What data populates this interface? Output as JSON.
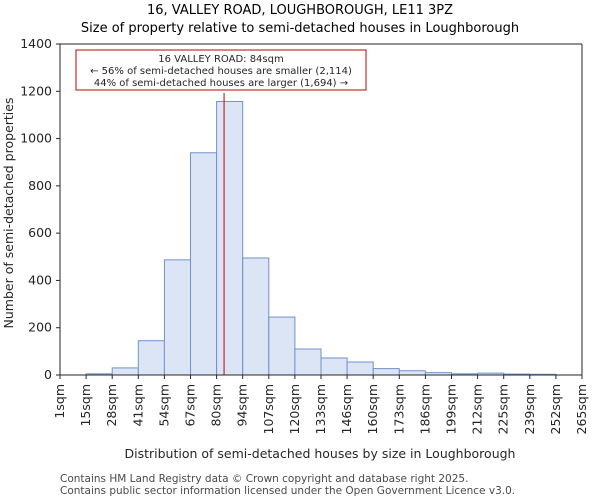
{
  "chart_data": {
    "type": "bar",
    "title_line1": "16, VALLEY ROAD, LOUGHBOROUGH, LE11 3PZ",
    "title_line2": "Size of property relative to semi-detached houses in Loughborough",
    "xlabel": "Distribution of semi-detached houses by size in Loughborough",
    "ylabel": "Number of semi-detached properties",
    "bin_edges": [
      1,
      15,
      28,
      41,
      54,
      67,
      80,
      94,
      107,
      120,
      133,
      146,
      160,
      173,
      186,
      199,
      212,
      225,
      239,
      252,
      265
    ],
    "tick_labels": [
      "1sqm",
      "15sqm",
      "28sqm",
      "41sqm",
      "54sqm",
      "67sqm",
      "80sqm",
      "94sqm",
      "107sqm",
      "120sqm",
      "133sqm",
      "146sqm",
      "160sqm",
      "173sqm",
      "186sqm",
      "199sqm",
      "212sqm",
      "225sqm",
      "239sqm",
      "252sqm",
      "265sqm"
    ],
    "values": [
      0,
      5,
      30,
      145,
      487,
      940,
      1157,
      495,
      245,
      110,
      72,
      55,
      27,
      18,
      10,
      5,
      8,
      4,
      3,
      0
    ],
    "ylim": [
      0,
      1400
    ],
    "yticks": [
      0,
      200,
      400,
      600,
      800,
      1000,
      1200,
      1400
    ],
    "bar_color": "#dbe5f5",
    "bar_edge_color": "#6f92cc",
    "property_line": {
      "value": 84,
      "color": "#c00000"
    },
    "annotation": {
      "line1": "16 VALLEY ROAD: 84sqm",
      "line2": "← 56% of semi-detached houses are smaller (2,114)",
      "line3": "44% of semi-detached houses are larger (1,694) →",
      "border_color": "#c00000"
    }
  },
  "footer": {
    "line1": "Contains HM Land Registry data © Crown copyright and database right 2025.",
    "line2": "Contains public sector information licensed under the Open Government Licence v3.0."
  }
}
